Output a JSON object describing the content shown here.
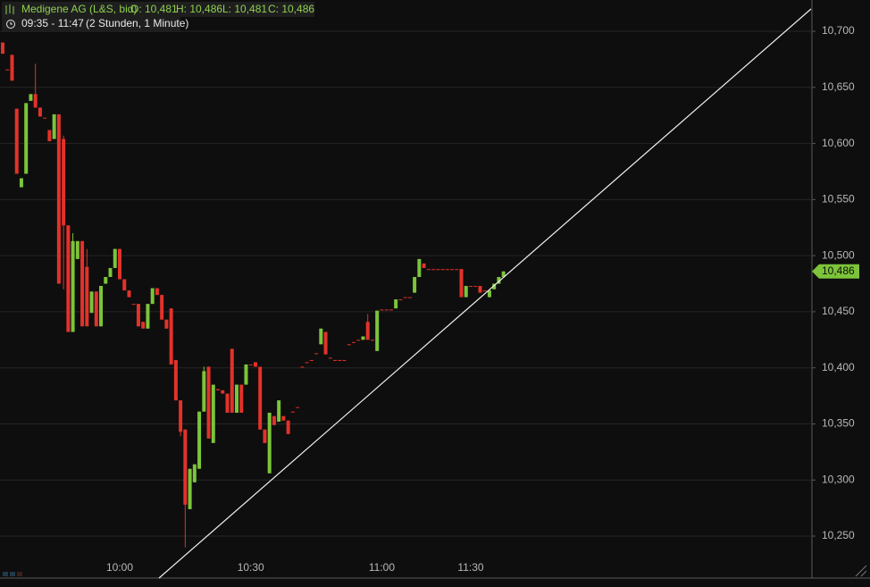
{
  "header": {
    "instrument": "Medigene AG (L&S, bid)",
    "ohlc": [
      "O: 10,481",
      "H: 10,486",
      "L: 10,481",
      "C: 10,486"
    ],
    "range": "09:35 - 11:47",
    "period": "(2 Stunden, 1 Minute)"
  },
  "chart_data": {
    "type": "candlestick",
    "categories": [
      null,
      null,
      null,
      null,
      null,
      null,
      null,
      null,
      null,
      null,
      null,
      null,
      null,
      null,
      null,
      null,
      null,
      null,
      null,
      null,
      null,
      null,
      null,
      null,
      null,
      "10:00",
      null,
      null,
      null,
      null,
      null,
      null,
      null,
      null,
      null,
      null,
      null,
      null,
      null,
      null,
      null,
      null,
      null,
      null,
      null,
      null,
      null,
      null,
      null,
      null,
      null,
      null,
      null,
      "10:30",
      null,
      null,
      null,
      null,
      null,
      null,
      null,
      null,
      null,
      null,
      null,
      null,
      null,
      null,
      null,
      null,
      null,
      null,
      null,
      null,
      null,
      null,
      null,
      null,
      null,
      null,
      null,
      "11:00",
      null,
      null,
      null,
      null,
      null,
      null,
      null,
      null,
      null,
      null,
      null,
      null,
      null,
      null,
      null,
      null,
      null,
      null,
      "11:30",
      null,
      null,
      null,
      null,
      null,
      null,
      null
    ],
    "open": [
      10.69,
      10.666,
      10.679,
      10.631,
      10.561,
      10.573,
      10.638,
      10.644,
      10.632,
      10.623,
      10.612,
      10.604,
      10.626,
      10.604,
      10.527,
      10.432,
      10.497,
      10.513,
      10.49,
      10.449,
      10.468,
      10.437,
      10.475,
      10.481,
      10.489,
      10.506,
      10.479,
      10.469,
      10.457,
      10.457,
      10.441,
      10.435,
      10.457,
      10.471,
      10.465,
      10.443,
      10.453,
      10.407,
      10.371,
      10.345,
      10.274,
      10.298,
      10.31,
      10.361,
      10.401,
      10.333,
      10.381,
      10.38,
      10.377,
      10.417,
      10.36,
      10.385,
      10.385,
      10.403,
      10.405,
      10.401,
      10.345,
      10.306,
      10.357,
      10.352,
      10.357,
      10.353,
      10.361,
      10.365,
      10.401,
      10.405,
      10.407,
      10.413,
      10.421,
      10.432,
      10.409,
      10.407,
      10.407,
      10.407,
      10.421,
      10.423,
      10.425,
      10.425,
      10.441,
      10.425,
      10.415,
      10.452,
      10.452,
      10.452,
      10.453,
      10.461,
      10.463,
      10.463,
      10.467,
      10.481,
      10.493,
      10.488,
      10.488,
      10.488,
      10.488,
      10.488,
      10.488,
      10.488,
      10.488,
      10.463,
      10.473,
      10.473,
      10.473,
      10.469,
      10.463,
      10.47,
      10.475,
      10.481
    ],
    "high": [
      10.69,
      10.666,
      10.679,
      10.631,
      10.569,
      10.636,
      10.644,
      10.671,
      10.632,
      10.623,
      10.612,
      10.626,
      10.626,
      10.607,
      10.527,
      10.52,
      10.513,
      10.513,
      10.506,
      10.468,
      10.468,
      10.473,
      10.481,
      10.489,
      10.506,
      10.506,
      10.479,
      10.469,
      10.457,
      10.457,
      10.441,
      10.457,
      10.471,
      10.471,
      10.465,
      10.443,
      10.453,
      10.407,
      10.371,
      10.345,
      10.31,
      10.314,
      10.361,
      10.401,
      10.401,
      10.385,
      10.381,
      10.38,
      10.377,
      10.417,
      10.385,
      10.385,
      10.403,
      10.403,
      10.405,
      10.401,
      10.345,
      10.36,
      10.357,
      10.371,
      10.357,
      10.353,
      10.361,
      10.365,
      10.401,
      10.405,
      10.407,
      10.413,
      10.435,
      10.432,
      10.409,
      10.407,
      10.407,
      10.407,
      10.421,
      10.423,
      10.425,
      10.428,
      10.448,
      10.425,
      10.451,
      10.452,
      10.452,
      10.452,
      10.461,
      10.461,
      10.463,
      10.463,
      10.481,
      10.497,
      10.493,
      10.488,
      10.488,
      10.488,
      10.488,
      10.488,
      10.488,
      10.488,
      10.488,
      10.473,
      10.473,
      10.473,
      10.473,
      10.469,
      10.469,
      10.475,
      10.481,
      10.486
    ],
    "low": [
      10.68,
      10.666,
      10.656,
      10.573,
      10.561,
      10.573,
      10.638,
      10.632,
      10.624,
      10.623,
      10.602,
      10.604,
      10.475,
      10.47,
      10.432,
      10.432,
      10.497,
      10.437,
      10.437,
      10.449,
      10.437,
      10.437,
      10.475,
      10.481,
      10.489,
      10.479,
      10.469,
      10.463,
      10.457,
      10.437,
      10.435,
      10.435,
      10.457,
      10.465,
      10.443,
      10.435,
      10.403,
      10.371,
      10.339,
      10.24,
      10.274,
      10.298,
      10.31,
      10.361,
      10.337,
      10.333,
      10.38,
      10.377,
      10.36,
      10.36,
      10.36,
      10.36,
      10.385,
      10.403,
      10.401,
      10.345,
      10.333,
      10.306,
      10.349,
      10.352,
      10.353,
      10.341,
      10.361,
      10.365,
      10.401,
      10.405,
      10.407,
      10.413,
      10.421,
      10.412,
      10.409,
      10.407,
      10.407,
      10.407,
      10.421,
      10.423,
      10.425,
      10.425,
      10.425,
      10.425,
      10.415,
      10.452,
      10.452,
      10.452,
      10.453,
      10.461,
      10.463,
      10.463,
      10.467,
      10.481,
      10.489,
      10.488,
      10.488,
      10.488,
      10.488,
      10.488,
      10.488,
      10.488,
      10.463,
      10.463,
      10.473,
      10.473,
      10.467,
      10.469,
      10.463,
      10.47,
      10.475,
      10.481
    ],
    "close": [
      10.68,
      10.666,
      10.656,
      10.573,
      10.569,
      10.636,
      10.644,
      10.632,
      10.624,
      10.623,
      10.602,
      10.626,
      10.475,
      10.527,
      10.432,
      10.513,
      10.513,
      10.437,
      10.437,
      10.468,
      10.437,
      10.473,
      10.481,
      10.489,
      10.506,
      10.479,
      10.469,
      10.463,
      10.457,
      10.437,
      10.435,
      10.457,
      10.471,
      10.465,
      10.443,
      10.435,
      10.403,
      10.371,
      10.343,
      10.278,
      10.31,
      10.314,
      10.361,
      10.397,
      10.337,
      10.385,
      10.38,
      10.377,
      10.36,
      10.36,
      10.385,
      10.36,
      10.403,
      10.403,
      10.401,
      10.345,
      10.333,
      10.36,
      10.349,
      10.371,
      10.353,
      10.341,
      10.361,
      10.365,
      10.401,
      10.405,
      10.407,
      10.413,
      10.435,
      10.412,
      10.409,
      10.407,
      10.407,
      10.407,
      10.421,
      10.423,
      10.425,
      10.428,
      10.425,
      10.425,
      10.451,
      10.452,
      10.452,
      10.452,
      10.461,
      10.461,
      10.463,
      10.463,
      10.481,
      10.497,
      10.489,
      10.488,
      10.488,
      10.488,
      10.488,
      10.488,
      10.488,
      10.488,
      10.463,
      10.473,
      10.473,
      10.473,
      10.467,
      10.469,
      10.469,
      10.475,
      10.481,
      10.486
    ],
    "ylim": [
      10.2126,
      10.7279
    ],
    "yticks": [
      {
        "value": 10.25,
        "label": "10,250"
      },
      {
        "value": 10.3,
        "label": "10,300"
      },
      {
        "value": 10.35,
        "label": "10,350"
      },
      {
        "value": 10.4,
        "label": "10,400"
      },
      {
        "value": 10.45,
        "label": "10,450"
      },
      {
        "value": 10.5,
        "label": "10,500"
      },
      {
        "value": 10.55,
        "label": "10,550"
      },
      {
        "value": 10.6,
        "label": "10,600"
      },
      {
        "value": 10.65,
        "label": "10,650"
      },
      {
        "value": 10.7,
        "label": "10,700"
      }
    ],
    "grid": true,
    "up_color": "#7cc43a",
    "down_color": "#e2322b",
    "last_price": {
      "value": 10.486,
      "label": "10,486"
    }
  }
}
